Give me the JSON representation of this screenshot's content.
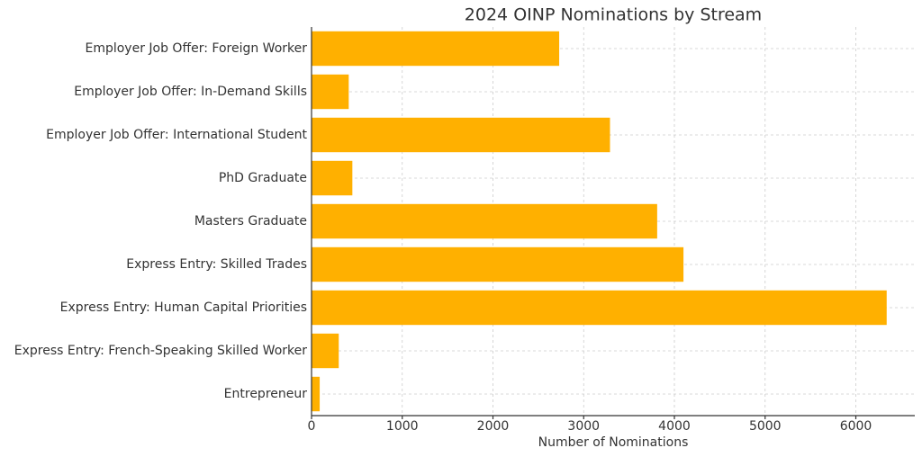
{
  "chart_data": {
    "type": "hbar",
    "title": "2024 OINP Nominations by Stream",
    "x_label": "Number of Nominations",
    "categories": [
      "Employer Job Offer: Foreign Worker",
      "Employer Job Offer: In-Demand Skills",
      "Employer Job Offer: International Student",
      "PhD Graduate",
      "Masters Graduate",
      "Express Entry: Skilled Trades",
      "Express Entry: Human Capital Priorities",
      "Express Entry: French-Speaking Skilled Worker",
      "Entrepreneur"
    ],
    "values": [
      2730,
      410,
      3290,
      450,
      3810,
      4100,
      6340,
      300,
      90
    ],
    "color": "#ffb000",
    "xlim": [
      0,
      6650
    ],
    "xticks": [
      0,
      1000,
      2000,
      3000,
      4000,
      5000,
      6000
    ],
    "grid": true
  }
}
